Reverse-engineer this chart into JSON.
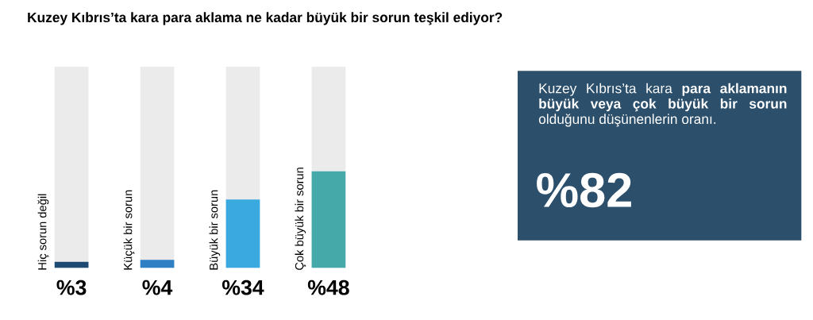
{
  "chart_data": [
    {
      "type": "bar",
      "title": "Kuzey Kıbrıs’ta kara para aklama ne kadar büyük bir sorun teşkil ediyor?",
      "categories": [
        "Hiç sorun değil",
        "Küçük bir sorun",
        "Büyük bir sorun",
        "Çok büyük bir sorun"
      ],
      "ylim": [
        0,
        100
      ],
      "series": [
        {
          "type": "bar",
          "colors": [
            "#1c4a72",
            "#2f7fc4",
            "#3aa9e0",
            "#45a9aa"
          ],
          "values": [
            3,
            4,
            34,
            48
          ],
          "value_labels": [
            "%3",
            "%4",
            "%34",
            "%48"
          ]
        }
      ]
    },
    {
      "type": "other",
      "color": "#2c4f6b",
      "annotations": [
        "Kuzey Kıbrıs’ta kara **para aklamanın büyük veya çok büyük bir sorun** olduğunu düşünenlerin oranı.",
        "%82"
      ]
    }
  ]
}
